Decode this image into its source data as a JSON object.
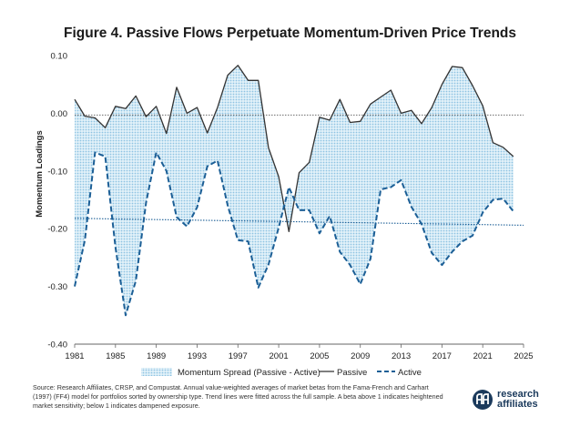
{
  "title": "Figure 4. Passive Flows Perpetuate Momentum-Driven Price Trends",
  "source_text": "Source: Research Affiliates, CRSP, and Compustat. Annual value-weighted averages of market betas from the Fama-French and Carhart (1997) (FF4) model for portfolios sorted by ownership type. Trend lines were fitted across the full sample. A beta above 1 indicates heightened market sensitivity; below 1 indicates dampened exposure.",
  "logo": {
    "line1": "research",
    "line2": "affiliates"
  },
  "chart_data": {
    "type": "line",
    "title": "Figure 4. Passive Flows Perpetuate Momentum-Driven Price Trends",
    "ylabel": "Momentum Loadings",
    "xlabel": "",
    "xlim": [
      1981,
      2025
    ],
    "ylim": [
      -0.4,
      0.1
    ],
    "xticks": [
      "1981",
      "1985",
      "1989",
      "1993",
      "1997",
      "2001",
      "2005",
      "2009",
      "2013",
      "2017",
      "2021",
      "2025"
    ],
    "yticks": [
      "0.10",
      "0.00",
      "-0.10",
      "-0.20",
      "-0.30",
      "-0.40"
    ],
    "x": [
      1981,
      1982,
      1983,
      1984,
      1985,
      1986,
      1987,
      1988,
      1989,
      1990,
      1991,
      1992,
      1993,
      1994,
      1995,
      1996,
      1997,
      1998,
      1999,
      2000,
      2001,
      2002,
      2003,
      2004,
      2005,
      2006,
      2007,
      2008,
      2009,
      2010,
      2011,
      2012,
      2013,
      2014,
      2015,
      2016,
      2017,
      2018,
      2019,
      2020,
      2021,
      2022,
      2023,
      2024
    ],
    "series": [
      {
        "name": "Passive",
        "style": "solid",
        "color": "#333333",
        "values": [
          0.024,
          -0.005,
          -0.008,
          -0.025,
          0.012,
          0.008,
          0.03,
          -0.006,
          0.012,
          -0.035,
          0.045,
          0.0,
          0.01,
          -0.034,
          0.01,
          0.066,
          0.083,
          0.057,
          0.057,
          -0.06,
          -0.11,
          -0.205,
          -0.103,
          -0.085,
          -0.007,
          -0.012,
          0.024,
          -0.016,
          -0.014,
          0.016,
          0.028,
          0.04,
          0.0,
          0.005,
          -0.018,
          0.01,
          0.05,
          0.081,
          0.079,
          0.048,
          0.013,
          -0.051,
          -0.059,
          -0.075
        ]
      },
      {
        "name": "Active",
        "style": "dashed",
        "color": "#1c5f96",
        "values": [
          -0.3,
          -0.22,
          -0.068,
          -0.075,
          -0.232,
          -0.35,
          -0.29,
          -0.155,
          -0.068,
          -0.1,
          -0.18,
          -0.196,
          -0.163,
          -0.092,
          -0.082,
          -0.16,
          -0.22,
          -0.222,
          -0.302,
          -0.262,
          -0.198,
          -0.128,
          -0.168,
          -0.168,
          -0.208,
          -0.178,
          -0.24,
          -0.263,
          -0.296,
          -0.252,
          -0.132,
          -0.128,
          -0.116,
          -0.162,
          -0.192,
          -0.242,
          -0.263,
          -0.24,
          -0.222,
          -0.212,
          -0.172,
          -0.15,
          -0.148,
          -0.17
        ]
      }
    ],
    "fill": {
      "name": "Momentum Spread (Passive - Active)",
      "color": "#a9d3ea"
    },
    "trendlines": [
      {
        "of": "Passive",
        "start": -0.003,
        "end": -0.003,
        "color": "#555555"
      },
      {
        "of": "Active",
        "start": -0.182,
        "end": -0.194,
        "color": "#1c5f96"
      }
    ],
    "legend": [
      "Momentum Spread (Passive - Active)",
      "Passive",
      "Active"
    ],
    "legend_position": "bottom",
    "grid": false
  }
}
